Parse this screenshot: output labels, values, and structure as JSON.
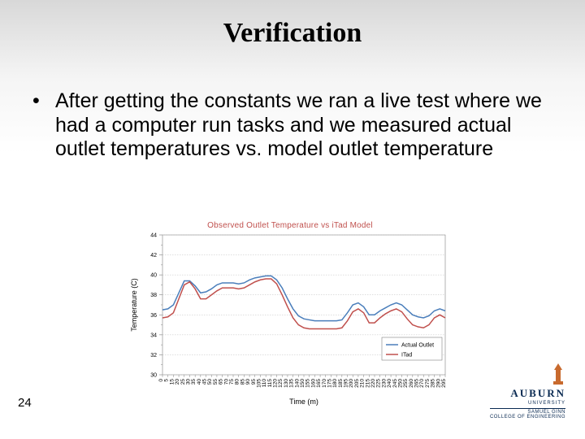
{
  "slide": {
    "title": "Verification",
    "bullet": "After getting the constants we ran a live test where we had a computer run tasks and we measured actual outlet temperatures vs. model outlet temperature",
    "number": "24"
  },
  "chart": {
    "type": "line",
    "title": "Observed Outlet Temperature vs iTad Model",
    "xlabel": "Time (m)",
    "ylabel": "Temperature (C)",
    "title_color": "#c0504d",
    "axis_label_color": "#000000",
    "grid_color": "#bfbfbf",
    "background_color": "#ffffff",
    "axis_color": "#808080",
    "font_size_title": 10,
    "font_size_axis_label": 9,
    "font_size_tick": 7,
    "ylim": [
      30,
      44
    ],
    "ytick_step": 2,
    "yticks": [
      30,
      32,
      34,
      36,
      38,
      40,
      42,
      44
    ],
    "x_categories": [
      "0",
      "5",
      "15",
      "20",
      "25",
      "30",
      "35",
      "40",
      "45",
      "50",
      "55",
      "65",
      "70",
      "75",
      "80",
      "85",
      "90",
      "95",
      "105",
      "110",
      "115",
      "120",
      "125",
      "130",
      "135",
      "140",
      "150",
      "155",
      "160",
      "165",
      "170",
      "175",
      "180",
      "185",
      "195",
      "200",
      "205",
      "210",
      "215",
      "220",
      "225",
      "230",
      "240",
      "245",
      "250",
      "255",
      "260",
      "265",
      "270",
      "275",
      "285",
      "290",
      "295"
    ],
    "legend": {
      "position": "right-lower",
      "border_color": "#808080",
      "items": [
        {
          "label": "Actual Outlet",
          "color": "#4a7ebb"
        },
        {
          "label": "ITad",
          "color": "#c0504d"
        }
      ]
    },
    "series": [
      {
        "name": "Actual Outlet",
        "color": "#4a7ebb",
        "line_width": 1.5,
        "data": [
          36.5,
          36.6,
          37.0,
          38.2,
          39.4,
          39.4,
          38.9,
          38.2,
          38.3,
          38.6,
          39.0,
          39.2,
          39.2,
          39.2,
          39.1,
          39.2,
          39.5,
          39.7,
          39.8,
          39.9,
          39.9,
          39.5,
          38.7,
          37.6,
          36.6,
          35.9,
          35.6,
          35.5,
          35.4,
          35.4,
          35.4,
          35.4,
          35.4,
          35.5,
          36.2,
          37.0,
          37.2,
          36.8,
          36.0,
          36.0,
          36.4,
          36.7,
          37.0,
          37.2,
          37.0,
          36.5,
          36.0,
          35.8,
          35.7,
          35.9,
          36.4,
          36.6,
          36.4
        ]
      },
      {
        "name": "ITad",
        "color": "#c0504d",
        "line_width": 1.5,
        "data": [
          35.7,
          35.8,
          36.2,
          37.6,
          39.0,
          39.3,
          38.6,
          37.6,
          37.6,
          38.0,
          38.4,
          38.7,
          38.7,
          38.7,
          38.6,
          38.7,
          39.0,
          39.3,
          39.5,
          39.6,
          39.6,
          39.1,
          38.0,
          36.8,
          35.7,
          35.0,
          34.7,
          34.6,
          34.6,
          34.6,
          34.6,
          34.6,
          34.6,
          34.7,
          35.4,
          36.3,
          36.6,
          36.2,
          35.2,
          35.2,
          35.7,
          36.1,
          36.4,
          36.6,
          36.3,
          35.6,
          35.0,
          34.8,
          34.7,
          35.0,
          35.7,
          36.0,
          35.7
        ]
      }
    ]
  },
  "footer": {
    "logo_color": "#c86a2e",
    "wordmark": "AUBURN",
    "wordmark_sub": "UNIVERSITY",
    "college": "SAMUEL GINN",
    "college2": "COLLEGE OF ENGINEERING",
    "color": "#0a2a52"
  }
}
